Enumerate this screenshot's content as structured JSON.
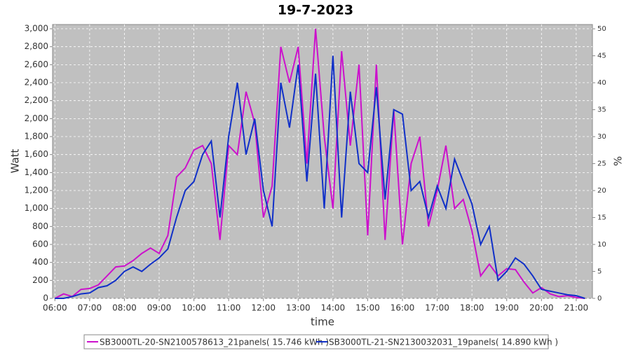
{
  "chart_data": {
    "type": "line",
    "title": "19-7-2023",
    "x_label": "time",
    "y_label": "Watt",
    "y2_label": "%",
    "x": [
      "06:00",
      "06:15",
      "06:30",
      "06:45",
      "07:00",
      "07:15",
      "07:30",
      "07:45",
      "08:00",
      "08:15",
      "08:30",
      "08:45",
      "09:00",
      "09:15",
      "09:30",
      "09:45",
      "10:00",
      "10:15",
      "10:30",
      "10:45",
      "11:00",
      "11:15",
      "11:30",
      "11:45",
      "12:00",
      "12:15",
      "12:30",
      "12:45",
      "13:00",
      "13:15",
      "13:30",
      "13:45",
      "14:00",
      "14:15",
      "14:30",
      "14:45",
      "15:00",
      "15:15",
      "15:30",
      "15:45",
      "16:00",
      "16:15",
      "16:30",
      "16:45",
      "17:00",
      "17:15",
      "17:30",
      "17:45",
      "18:00",
      "18:15",
      "18:30",
      "18:45",
      "19:00",
      "19:15",
      "19:30",
      "19:45",
      "20:00",
      "20:15",
      "20:30",
      "20:45",
      "21:00",
      "21:15"
    ],
    "xlim": [
      "05:56",
      "21:28"
    ],
    "xticks": [
      "06:00",
      "07:00",
      "08:00",
      "09:00",
      "10:00",
      "11:00",
      "12:00",
      "13:00",
      "14:00",
      "15:00",
      "16:00",
      "17:00",
      "18:00",
      "19:00",
      "20:00",
      "21:00"
    ],
    "ylim": [
      0,
      3047
    ],
    "yticks": [
      0,
      200,
      400,
      600,
      800,
      {
        "value": 1000,
        "label": "1,000"
      },
      {
        "value": 1200,
        "label": "1,200"
      },
      {
        "value": 1400,
        "label": "1,400"
      },
      {
        "value": 1600,
        "label": "1,600"
      },
      {
        "value": 1800,
        "label": "1,800"
      },
      {
        "value": 2000,
        "label": "2,000"
      },
      {
        "value": 2200,
        "label": "2,200"
      },
      {
        "value": 2400,
        "label": "2,400"
      },
      {
        "value": 2600,
        "label": "2,600"
      },
      {
        "value": 2800,
        "label": "2,800"
      },
      {
        "value": 3000,
        "label": "3,000"
      }
    ],
    "y2lim": [
      0,
      50.8
    ],
    "y2ticks": [
      0,
      5,
      10,
      15,
      20,
      25,
      30,
      35,
      40,
      45,
      50
    ],
    "grid": true,
    "legend": "bottom",
    "series": [
      {
        "name": "SB3000TL-20-SN2100578613_21panels( 15.746 kWh )",
        "color": "#cc11cc",
        "values": [
          0,
          50,
          20,
          100,
          110,
          150,
          250,
          350,
          360,
          420,
          500,
          560,
          500,
          700,
          1350,
          1450,
          1650,
          1700,
          1500,
          650,
          1700,
          1600,
          2300,
          1950,
          900,
          1250,
          2800,
          2400,
          2800,
          1500,
          3000,
          1800,
          1000,
          2750,
          1700,
          2600,
          700,
          2600,
          650,
          2100,
          600,
          1500,
          1800,
          800,
          1200,
          1700,
          1000,
          1100,
          750,
          250,
          380,
          250,
          330,
          320,
          180,
          60,
          120,
          50,
          20,
          30,
          10,
          0
        ]
      },
      {
        "name": "SB3000TL-21-SN2130032031_19panels( 14.890 kWh )",
        "color": "#1030c8",
        "values": [
          0,
          0,
          20,
          50,
          60,
          120,
          140,
          200,
          300,
          350,
          300,
          380,
          450,
          550,
          900,
          1200,
          1300,
          1600,
          1750,
          900,
          1800,
          2400,
          1600,
          2000,
          1200,
          800,
          2400,
          1900,
          2600,
          1300,
          2500,
          1000,
          2700,
          900,
          2300,
          1500,
          1400,
          2350,
          1100,
          2100,
          2050,
          1200,
          1300,
          900,
          1250,
          1000,
          1550,
          1300,
          1050,
          600,
          800,
          200,
          300,
          450,
          380,
          250,
          100,
          80,
          60,
          40,
          30,
          0
        ]
      }
    ]
  }
}
